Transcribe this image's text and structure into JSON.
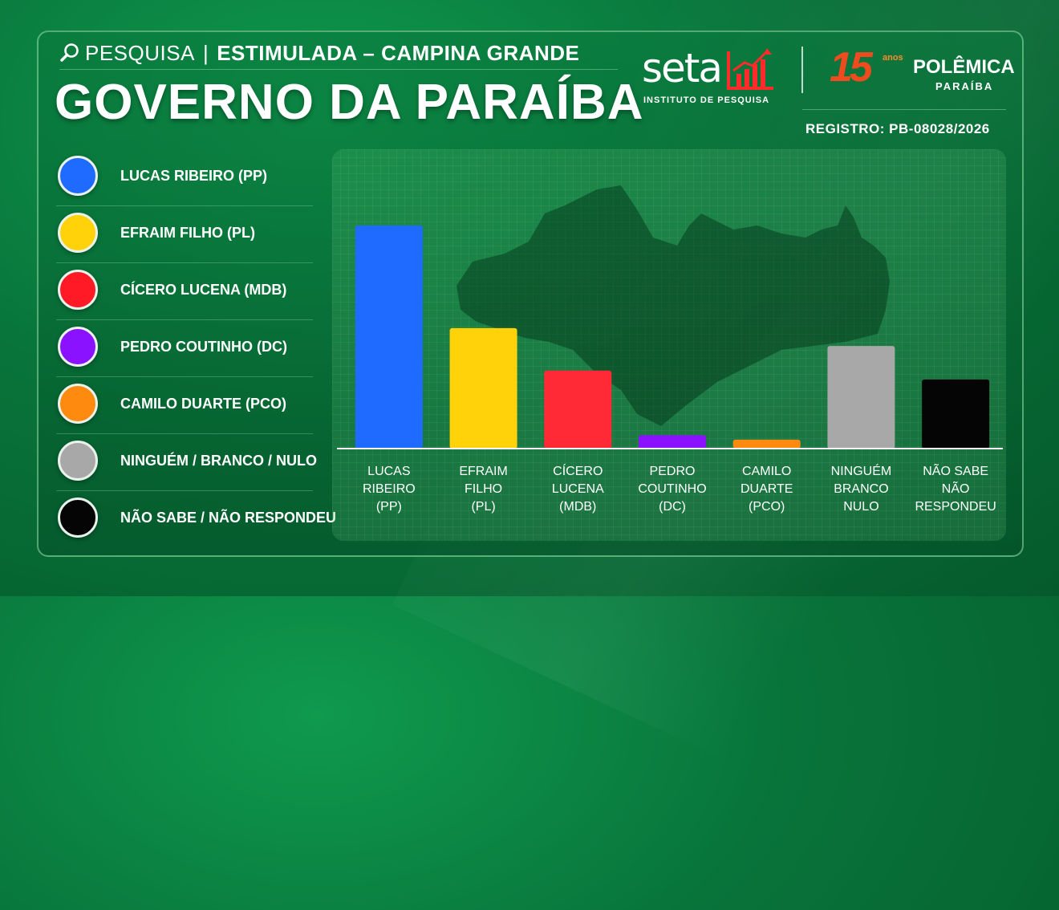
{
  "header": {
    "kind": "PESQUISA",
    "separator": "|",
    "subtitle": "ESTIMULADA – CAMPINA GRANDE",
    "title": "GOVERNO DA PARAÍBA",
    "registro": "REGISTRO: PB-08028/2026"
  },
  "logos": {
    "seta_name": "seta",
    "seta_sub": "INSTITUTO DE PESQUISA",
    "polemica_number": "15",
    "polemica_anos": "anos",
    "polemica_name": "POLÊMICA",
    "polemica_state": "PARAÍBA"
  },
  "legend": [
    {
      "label": "LUCAS RIBEIRO (PP)",
      "color": "#1f6bff"
    },
    {
      "label": "EFRAIM FILHO (PL)",
      "color": "#ffd20a"
    },
    {
      "label": "CÍCERO LUCENA (MDB)",
      "color": "#ff1a26"
    },
    {
      "label": "PEDRO COUTINHO (DC)",
      "color": "#8a12ff"
    },
    {
      "label": "CAMILO DUARTE (PCO)",
      "color": "#ff8a10"
    },
    {
      "label": "NINGUÉM / BRANCO / NULO",
      "color": "#a8a8a8"
    },
    {
      "label": "NÃO SABE / NÃO RESPONDEU",
      "color": "#050505"
    }
  ],
  "chart_data": {
    "type": "bar",
    "title": "",
    "xlabel": "",
    "ylabel": "",
    "categories": [
      [
        "LUCAS",
        "RIBEIRO",
        "(PP)"
      ],
      [
        "EFRAIM",
        "FILHO",
        "(PL)"
      ],
      [
        "CÍCERO",
        "LUCENA",
        "(MDB)"
      ],
      [
        "PEDRO",
        "COUTINHO",
        "(DC)"
      ],
      [
        "CAMILO",
        "DUARTE",
        "(PCO)"
      ],
      [
        "NINGUÉM",
        "BRANCO",
        "NULO"
      ],
      [
        "NÃO SABE",
        "NÃO",
        "RESPONDEU"
      ]
    ],
    "values": [
      100,
      54,
      35,
      6,
      4,
      46,
      31
    ],
    "colors": [
      "#1f6bff",
      "#ffd20a",
      "#ff2a36",
      "#8a12ff",
      "#ff8a10",
      "#a8a8a8",
      "#050505"
    ],
    "ylim": [
      0,
      100
    ],
    "grid": false,
    "legend_position": "left"
  }
}
